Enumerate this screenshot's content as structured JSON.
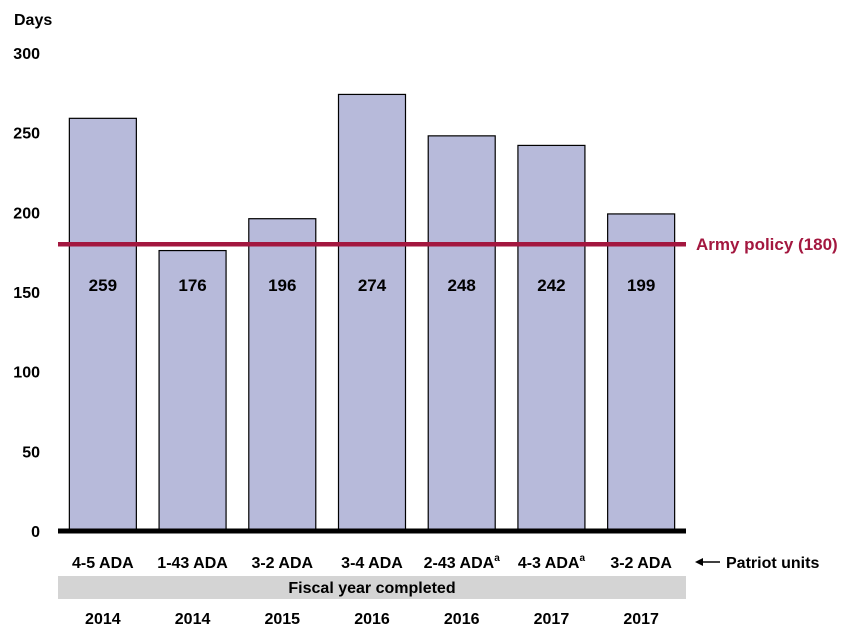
{
  "chart_data": {
    "type": "bar",
    "ylabel": "Days",
    "ylim": [
      0,
      300
    ],
    "yticks": [
      0,
      50,
      100,
      150,
      200,
      250,
      300
    ],
    "grid": false,
    "categories": [
      "4-5 ADA",
      "1-43 ADA",
      "3-2 ADA",
      "3-4 ADA",
      "2-43 ADA",
      "4-3 ADA",
      "3-2 ADA"
    ],
    "category_superscripts": [
      "",
      "",
      "",
      "",
      "a",
      "a",
      ""
    ],
    "years": [
      "2014",
      "2014",
      "2015",
      "2016",
      "2016",
      "2017",
      "2017"
    ],
    "values": [
      259,
      176,
      196,
      274,
      248,
      242,
      199
    ],
    "value_labels": [
      "259",
      "176",
      "196",
      "274",
      "248",
      "242",
      "199"
    ],
    "reference_line": {
      "label": "Army policy (180)",
      "value": 180,
      "color": "#a3173f"
    },
    "category_axis_note": "Patriot units",
    "year_band_label": "Fiscal year completed",
    "bar_color": "#b7bada",
    "band_color": "#d4d4d4"
  }
}
